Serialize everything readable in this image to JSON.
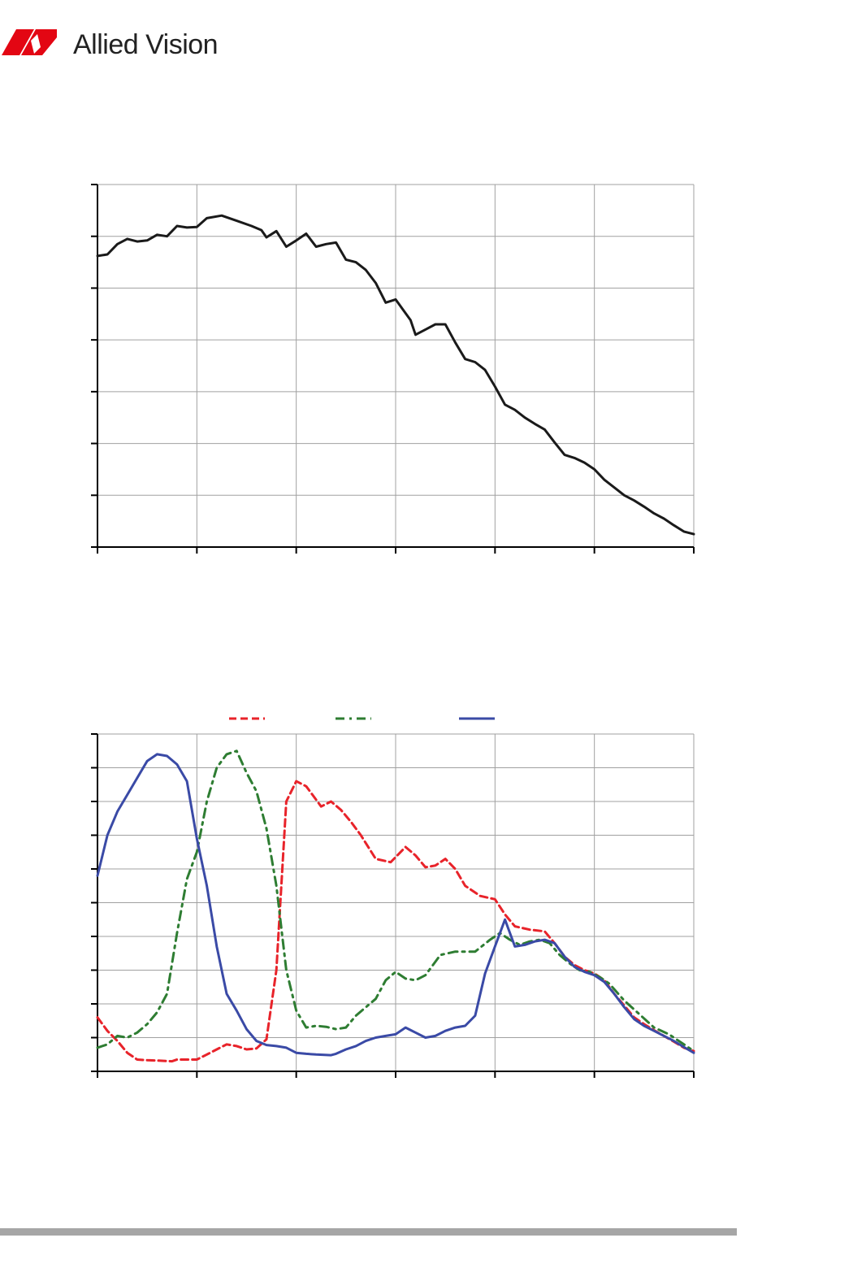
{
  "header": {
    "brand_name": "Allied Vision",
    "brand_color": "#e30613"
  },
  "colors": {
    "mono_line": "#1a1a1a",
    "red": "#e8232a",
    "green": "#2e7d32",
    "blue": "#3a4aa6",
    "grid": "#a0a0a0",
    "axis": "#000000",
    "footer_rule": "#a6a6a6"
  },
  "chart_data": [
    {
      "type": "line",
      "title": "",
      "xlabel": "",
      "ylabel": "",
      "xlim": [
        0,
        6
      ],
      "ylim": [
        0,
        7
      ],
      "x_gridlines": 6,
      "y_gridlines": 7,
      "grid": true,
      "legend": "none",
      "series": [
        {
          "color": "#1a1a1a",
          "style": "solid",
          "points": [
            [
              0.0,
              5.62
            ],
            [
              0.1,
              5.65
            ],
            [
              0.2,
              5.85
            ],
            [
              0.3,
              5.95
            ],
            [
              0.4,
              5.9
            ],
            [
              0.5,
              5.92
            ],
            [
              0.6,
              6.03
            ],
            [
              0.7,
              6.0
            ],
            [
              0.8,
              6.2
            ],
            [
              0.9,
              6.17
            ],
            [
              1.0,
              6.18
            ],
            [
              1.1,
              6.35
            ],
            [
              1.25,
              6.4
            ],
            [
              1.4,
              6.3
            ],
            [
              1.55,
              6.2
            ],
            [
              1.65,
              6.12
            ],
            [
              1.7,
              5.98
            ],
            [
              1.8,
              6.1
            ],
            [
              1.9,
              5.8
            ],
            [
              2.0,
              5.92
            ],
            [
              2.1,
              6.05
            ],
            [
              2.2,
              5.8
            ],
            [
              2.3,
              5.85
            ],
            [
              2.4,
              5.88
            ],
            [
              2.5,
              5.55
            ],
            [
              2.6,
              5.5
            ],
            [
              2.7,
              5.35
            ],
            [
              2.8,
              5.1
            ],
            [
              2.9,
              4.72
            ],
            [
              3.0,
              4.78
            ],
            [
              3.15,
              4.38
            ],
            [
              3.2,
              4.1
            ],
            [
              3.3,
              4.2
            ],
            [
              3.4,
              4.3
            ],
            [
              3.5,
              4.3
            ],
            [
              3.6,
              3.95
            ],
            [
              3.7,
              3.63
            ],
            [
              3.8,
              3.57
            ],
            [
              3.9,
              3.42
            ],
            [
              4.0,
              3.1
            ],
            [
              4.1,
              2.75
            ],
            [
              4.2,
              2.65
            ],
            [
              4.3,
              2.5
            ],
            [
              4.4,
              2.38
            ],
            [
              4.5,
              2.27
            ],
            [
              4.6,
              2.02
            ],
            [
              4.7,
              1.78
            ],
            [
              4.8,
              1.72
            ],
            [
              4.9,
              1.63
            ],
            [
              5.0,
              1.5
            ],
            [
              5.1,
              1.3
            ],
            [
              5.2,
              1.15
            ],
            [
              5.3,
              1.0
            ],
            [
              5.4,
              0.9
            ],
            [
              5.5,
              0.78
            ],
            [
              5.6,
              0.65
            ],
            [
              5.7,
              0.55
            ],
            [
              5.8,
              0.42
            ],
            [
              5.9,
              0.3
            ],
            [
              6.0,
              0.25
            ]
          ]
        }
      ]
    },
    {
      "type": "line",
      "title": "",
      "xlabel": "",
      "ylabel": "",
      "xlim": [
        0,
        6
      ],
      "ylim": [
        0,
        10
      ],
      "x_gridlines": 6,
      "y_gridlines": 10,
      "grid": true,
      "legend": "top-center",
      "series": [
        {
          "color": "#e8232a",
          "style": "dashed",
          "points": [
            [
              0.0,
              1.6
            ],
            [
              0.1,
              1.2
            ],
            [
              0.2,
              0.9
            ],
            [
              0.3,
              0.55
            ],
            [
              0.4,
              0.35
            ],
            [
              0.5,
              0.33
            ],
            [
              0.6,
              0.32
            ],
            [
              0.75,
              0.3
            ],
            [
              0.8,
              0.35
            ],
            [
              1.0,
              0.35
            ],
            [
              1.1,
              0.5
            ],
            [
              1.2,
              0.65
            ],
            [
              1.3,
              0.8
            ],
            [
              1.4,
              0.75
            ],
            [
              1.5,
              0.65
            ],
            [
              1.6,
              0.68
            ],
            [
              1.7,
              0.95
            ],
            [
              1.8,
              3.0
            ],
            [
              1.9,
              8.0
            ],
            [
              2.0,
              8.6
            ],
            [
              2.1,
              8.45
            ],
            [
              2.25,
              7.85
            ],
            [
              2.35,
              8.0
            ],
            [
              2.45,
              7.75
            ],
            [
              2.55,
              7.4
            ],
            [
              2.65,
              7.0
            ],
            [
              2.8,
              6.3
            ],
            [
              2.95,
              6.2
            ],
            [
              3.1,
              6.65
            ],
            [
              3.2,
              6.4
            ],
            [
              3.3,
              6.05
            ],
            [
              3.4,
              6.1
            ],
            [
              3.5,
              6.3
            ],
            [
              3.6,
              6.0
            ],
            [
              3.7,
              5.5
            ],
            [
              3.85,
              5.2
            ],
            [
              4.0,
              5.1
            ],
            [
              4.1,
              4.65
            ],
            [
              4.2,
              4.3
            ],
            [
              4.35,
              4.2
            ],
            [
              4.5,
              4.15
            ],
            [
              4.6,
              3.8
            ],
            [
              4.7,
              3.4
            ],
            [
              4.8,
              3.15
            ],
            [
              4.9,
              3.0
            ],
            [
              5.0,
              2.9
            ],
            [
              5.1,
              2.7
            ],
            [
              5.2,
              2.3
            ],
            [
              5.3,
              1.95
            ],
            [
              5.4,
              1.6
            ],
            [
              5.5,
              1.4
            ],
            [
              5.6,
              1.22
            ],
            [
              5.7,
              1.05
            ],
            [
              5.8,
              0.88
            ],
            [
              5.9,
              0.7
            ],
            [
              6.0,
              0.6
            ]
          ]
        },
        {
          "color": "#2e7d32",
          "style": "dashdot",
          "points": [
            [
              0.0,
              0.7
            ],
            [
              0.1,
              0.8
            ],
            [
              0.2,
              1.05
            ],
            [
              0.3,
              1.0
            ],
            [
              0.4,
              1.15
            ],
            [
              0.5,
              1.4
            ],
            [
              0.6,
              1.75
            ],
            [
              0.7,
              2.3
            ],
            [
              0.8,
              4.1
            ],
            [
              0.9,
              5.7
            ],
            [
              1.0,
              6.5
            ],
            [
              1.1,
              8.0
            ],
            [
              1.2,
              9.0
            ],
            [
              1.3,
              9.4
            ],
            [
              1.4,
              9.5
            ],
            [
              1.5,
              8.85
            ],
            [
              1.6,
              8.3
            ],
            [
              1.7,
              7.2
            ],
            [
              1.8,
              5.5
            ],
            [
              1.9,
              3.0
            ],
            [
              2.0,
              1.8
            ],
            [
              2.1,
              1.3
            ],
            [
              2.2,
              1.35
            ],
            [
              2.3,
              1.32
            ],
            [
              2.4,
              1.25
            ],
            [
              2.5,
              1.3
            ],
            [
              2.6,
              1.65
            ],
            [
              2.7,
              1.9
            ],
            [
              2.8,
              2.15
            ],
            [
              2.9,
              2.7
            ],
            [
              3.0,
              2.95
            ],
            [
              3.1,
              2.75
            ],
            [
              3.2,
              2.7
            ],
            [
              3.3,
              2.85
            ],
            [
              3.45,
              3.45
            ],
            [
              3.6,
              3.55
            ],
            [
              3.8,
              3.55
            ],
            [
              3.95,
              3.9
            ],
            [
              4.05,
              4.1
            ],
            [
              4.15,
              3.9
            ],
            [
              4.25,
              3.75
            ],
            [
              4.35,
              3.85
            ],
            [
              4.45,
              3.9
            ],
            [
              4.55,
              3.8
            ],
            [
              4.65,
              3.45
            ],
            [
              4.75,
              3.2
            ],
            [
              4.85,
              3.0
            ],
            [
              4.95,
              2.95
            ],
            [
              5.05,
              2.8
            ],
            [
              5.15,
              2.6
            ],
            [
              5.3,
              2.1
            ],
            [
              5.45,
              1.7
            ],
            [
              5.6,
              1.3
            ],
            [
              5.75,
              1.1
            ],
            [
              5.9,
              0.8
            ],
            [
              6.0,
              0.6
            ]
          ]
        },
        {
          "color": "#3a4aa6",
          "style": "solid",
          "points": [
            [
              0.0,
              5.8
            ],
            [
              0.1,
              7.0
            ],
            [
              0.2,
              7.7
            ],
            [
              0.3,
              8.2
            ],
            [
              0.4,
              8.7
            ],
            [
              0.5,
              9.2
            ],
            [
              0.6,
              9.4
            ],
            [
              0.7,
              9.35
            ],
            [
              0.8,
              9.1
            ],
            [
              0.9,
              8.6
            ],
            [
              1.0,
              6.9
            ],
            [
              1.1,
              5.5
            ],
            [
              1.2,
              3.7
            ],
            [
              1.3,
              2.3
            ],
            [
              1.4,
              1.8
            ],
            [
              1.5,
              1.25
            ],
            [
              1.6,
              0.9
            ],
            [
              1.7,
              0.78
            ],
            [
              1.8,
              0.75
            ],
            [
              1.9,
              0.7
            ],
            [
              2.0,
              0.55
            ],
            [
              2.1,
              0.52
            ],
            [
              2.2,
              0.5
            ],
            [
              2.35,
              0.48
            ],
            [
              2.4,
              0.52
            ],
            [
              2.5,
              0.65
            ],
            [
              2.6,
              0.75
            ],
            [
              2.7,
              0.9
            ],
            [
              2.8,
              1.0
            ],
            [
              2.9,
              1.05
            ],
            [
              3.0,
              1.1
            ],
            [
              3.1,
              1.3
            ],
            [
              3.2,
              1.15
            ],
            [
              3.3,
              1.0
            ],
            [
              3.4,
              1.05
            ],
            [
              3.5,
              1.2
            ],
            [
              3.6,
              1.3
            ],
            [
              3.7,
              1.35
            ],
            [
              3.8,
              1.65
            ],
            [
              3.9,
              2.9
            ],
            [
              4.0,
              3.7
            ],
            [
              4.1,
              4.5
            ],
            [
              4.2,
              3.7
            ],
            [
              4.3,
              3.75
            ],
            [
              4.4,
              3.85
            ],
            [
              4.5,
              3.9
            ],
            [
              4.6,
              3.8
            ],
            [
              4.7,
              3.4
            ],
            [
              4.8,
              3.1
            ],
            [
              4.9,
              2.95
            ],
            [
              5.0,
              2.85
            ],
            [
              5.1,
              2.65
            ],
            [
              5.2,
              2.3
            ],
            [
              5.3,
              1.9
            ],
            [
              5.4,
              1.55
            ],
            [
              5.5,
              1.35
            ],
            [
              5.6,
              1.2
            ],
            [
              5.7,
              1.05
            ],
            [
              5.8,
              0.9
            ],
            [
              5.9,
              0.72
            ],
            [
              6.0,
              0.55
            ]
          ]
        }
      ]
    }
  ]
}
